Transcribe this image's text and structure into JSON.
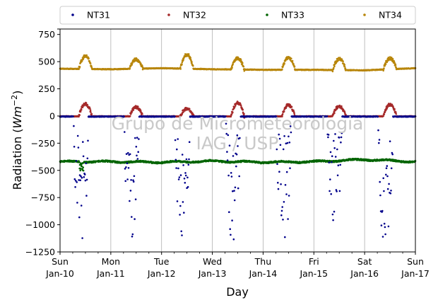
{
  "chart_data": {
    "type": "scatter",
    "xlabel": "Day",
    "ylabel_prefix": "Radiation (",
    "ylabel_unit_main": "Wm",
    "ylabel_unit_sup": "−2",
    "ylabel_suffix": ")",
    "ylim": [
      -1250,
      800
    ],
    "yticks": [
      800,
      750,
      500,
      250,
      0,
      -250,
      -500,
      -750,
      -1000,
      -1250
    ],
    "ytick_labels": [
      "",
      "750",
      "500",
      "250",
      "0",
      "−250",
      "−500",
      "−750",
      "−1000",
      "−1250"
    ],
    "xlim": [
      "2018-01-10",
      "2018-01-17"
    ],
    "xticks": [
      {
        "day": "Sun",
        "date": "Jan-10"
      },
      {
        "day": "Mon",
        "date": "Jan-11"
      },
      {
        "day": "Tue",
        "date": "Jan-12"
      },
      {
        "day": "Wed",
        "date": "Jan-13"
      },
      {
        "day": "Thu",
        "date": "Jan-14"
      },
      {
        "day": "Fri",
        "date": "Jan-15"
      },
      {
        "day": "Sat",
        "date": "Jan-16"
      },
      {
        "day": "Sun",
        "date": "Jan-17"
      }
    ],
    "grid": "vertical",
    "legend_placement": "top, outside plot, 4 columns",
    "watermark": "Grupo de Micrometeorologia IAG / USP",
    "watermark_lines": [
      "Grupo de Micrometeorologia",
      "IAG / USP"
    ],
    "series": [
      {
        "name": "NT31",
        "color": "#00008b",
        "pattern": "nighttime_drops",
        "baseline": -5,
        "daily_min": [
          -1170,
          -1120,
          -1150,
          -1240,
          -1180,
          -1000,
          -1260
        ]
      },
      {
        "name": "NT32",
        "color": "#a52a2a",
        "pattern": "daytime_bump",
        "baseline": -3,
        "daily_peak": [
          110,
          80,
          70,
          120,
          100,
          90,
          105
        ]
      },
      {
        "name": "NT33",
        "color": "#006400",
        "pattern": "flat_noisy",
        "values_daily": [
          -420,
          -420,
          -425,
          -415,
          -425,
          -420,
          -400,
          -420
        ],
        "dip_day0": -510
      },
      {
        "name": "NT34",
        "color": "#b8860b",
        "pattern": "daytime_bump",
        "baseline": [
          435,
          430,
          440,
          430,
          425,
          425,
          420,
          440
        ],
        "daily_peak": [
          550,
          520,
          565,
          530,
          535,
          525,
          530
        ]
      }
    ]
  }
}
